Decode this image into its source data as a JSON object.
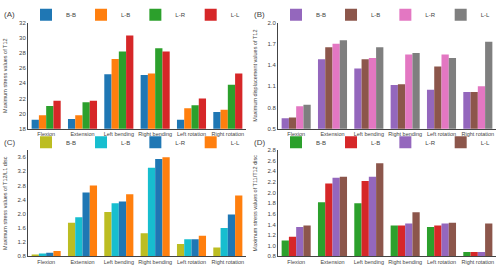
{
  "chart_data": [
    {
      "type": "bar",
      "title": "(A)",
      "ylabel": "Maximum stress values of T12",
      "categories": [
        "Flexion",
        "Extension",
        "Left bending",
        "Right bending",
        "Left rotation",
        "Right rotation"
      ],
      "series": [
        {
          "name": "B-B",
          "values": [
            19.2,
            19.3,
            25.2,
            25.1,
            19.2,
            20.2
          ]
        },
        {
          "name": "L-B",
          "values": [
            19.8,
            19.8,
            27.2,
            25.3,
            20.7,
            20.5
          ]
        },
        {
          "name": "L-R",
          "values": [
            21.0,
            21.5,
            28.2,
            28.6,
            21.1,
            23.8
          ]
        },
        {
          "name": "L-L",
          "values": [
            21.7,
            21.7,
            30.3,
            28.2,
            22.0,
            25.3
          ]
        }
      ],
      "ylim": [
        18,
        32
      ],
      "yticks": [
        18,
        20,
        22,
        24,
        26,
        28,
        30,
        32
      ],
      "grid": false,
      "legend": "upper right"
    },
    {
      "type": "bar",
      "title": "(B)",
      "ylabel": "Maximum displacement values of T12",
      "categories": [
        "Flexion",
        "Extension",
        "Left bending",
        "Right bending",
        "Left rotation",
        "Right rotation"
      ],
      "series": [
        {
          "name": "B-B",
          "values": [
            0.65,
            1.48,
            1.35,
            1.12,
            1.05,
            1.02
          ]
        },
        {
          "name": "L-B",
          "values": [
            0.66,
            1.65,
            1.48,
            1.13,
            1.38,
            1.02
          ]
        },
        {
          "name": "L-R",
          "values": [
            0.82,
            1.7,
            1.5,
            1.55,
            1.55,
            1.1
          ]
        },
        {
          "name": "L-L",
          "values": [
            0.84,
            1.75,
            1.65,
            1.57,
            1.5,
            1.73
          ]
        }
      ],
      "ylim": [
        0.5,
        2.0
      ],
      "yticks": [
        0.5,
        0.8,
        1.1,
        1.4,
        1.7,
        {
          "value": 2.0,
          "label": "2.0"
        }
      ],
      "grid": false,
      "legend": "upper right"
    },
    {
      "type": "bar",
      "title": "(C)",
      "ylabel": "Maximum stress values of T12/L1 disc",
      "categories": [
        "Flexion",
        "Extension",
        "Left bending",
        "Right bending",
        "Left rotation",
        "Right rotation"
      ],
      "series": [
        {
          "name": "B-B",
          "values": [
            0.85,
            1.75,
            2.05,
            1.45,
            1.15,
            1.05
          ]
        },
        {
          "name": "L-B",
          "values": [
            0.88,
            1.9,
            2.3,
            3.3,
            1.28,
            1.6
          ]
        },
        {
          "name": "L-R",
          "values": [
            0.9,
            2.6,
            2.35,
            3.55,
            1.28,
            1.98
          ]
        },
        {
          "name": "L-L",
          "values": [
            0.95,
            2.8,
            2.55,
            3.6,
            1.38,
            2.52
          ]
        }
      ],
      "ylim": [
        0.8,
        3.8
      ],
      "yticks": [
        0.8,
        1.2,
        1.6,
        {
          "value": 2.0,
          "label": "2.0"
        },
        2.4,
        2.8,
        3.2,
        3.6
      ],
      "grid": false,
      "legend": "upper right"
    },
    {
      "type": "bar",
      "title": "(D)",
      "ylabel": "Maximum stress values of T11/T12 disc",
      "categories": [
        "Flexion",
        "Extension",
        "Left bending",
        "Right bending",
        "Left rotation",
        "Right rotation"
      ],
      "series": [
        {
          "name": "B-B",
          "values": [
            1.1,
            1.82,
            1.8,
            1.38,
            1.35,
            0.88
          ]
        },
        {
          "name": "L-B",
          "values": [
            1.17,
            2.17,
            2.22,
            1.38,
            1.38,
            0.88
          ]
        },
        {
          "name": "L-R",
          "values": [
            1.35,
            2.28,
            2.3,
            1.42,
            1.42,
            0.88
          ]
        },
        {
          "name": "L-L",
          "values": [
            1.38,
            2.3,
            2.55,
            1.63,
            1.43,
            1.42
          ]
        }
      ],
      "ylim": [
        0.8,
        2.8
      ],
      "yticks": [
        0.8,
        {
          "value": 1.0,
          "label": "1.0"
        },
        1.2,
        1.4,
        1.6,
        1.8,
        {
          "value": 2.0,
          "label": "2.0"
        },
        2.2,
        2.4,
        2.6,
        2.8
      ],
      "grid": false,
      "legend": "upper right"
    }
  ]
}
